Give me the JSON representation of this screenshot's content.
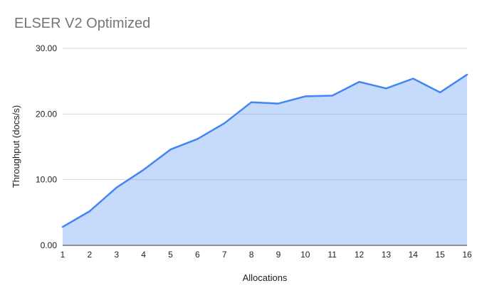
{
  "chart_data": {
    "type": "area",
    "title": "ELSER V2 Optimized",
    "xlabel": "Allocations",
    "ylabel": "Throughput (docs/s)",
    "x": [
      1,
      2,
      3,
      4,
      5,
      6,
      7,
      8,
      9,
      10,
      11,
      12,
      13,
      14,
      15,
      16
    ],
    "series": [
      {
        "name": "Throughput",
        "values": [
          2.8,
          5.2,
          8.8,
          11.5,
          14.6,
          16.2,
          18.6,
          21.8,
          21.6,
          22.7,
          22.8,
          24.9,
          23.9,
          25.4,
          23.3,
          26.0
        ]
      }
    ],
    "ylim": [
      0,
      30
    ],
    "y_tick_values": [
      0,
      10,
      20,
      30
    ],
    "y_tick_labels": [
      "0.00",
      "10.00",
      "20.00",
      "30.00"
    ],
    "grid": true,
    "legend_position": "none",
    "colors": {
      "line": "#4285f4",
      "fill": "rgba(66,133,244,0.3)",
      "title_text": "#757575",
      "axis_text": "#1f1f1f",
      "gridline": "#dadada",
      "axis_line": "#333333",
      "background": "#ffffff"
    }
  }
}
